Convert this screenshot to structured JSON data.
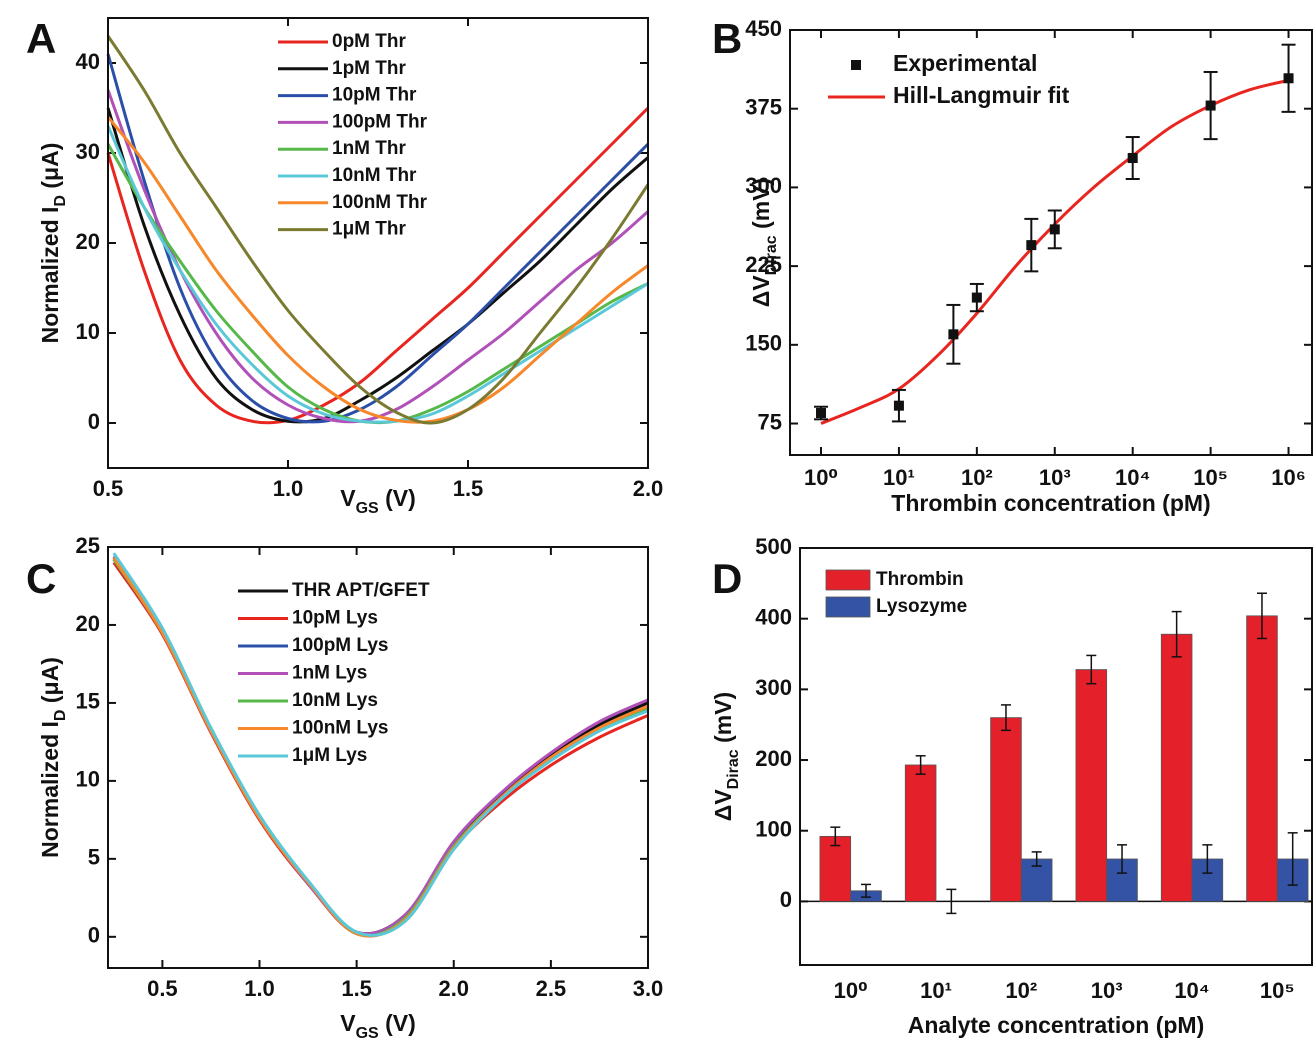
{
  "chart_data": [
    {
      "type": "line",
      "panel": "A",
      "x_label": [
        "V",
        "GS",
        " (V)"
      ],
      "y_label": [
        "Normalized I",
        "D",
        " (μA)"
      ],
      "x": [
        0.5,
        0.6,
        0.7,
        0.8,
        0.9,
        1.0,
        1.1,
        1.2,
        1.3,
        1.4,
        1.5,
        1.6,
        1.7,
        1.8,
        1.9,
        2.0
      ],
      "xlim": [
        0.5,
        2.0
      ],
      "ylim": [
        -5,
        45
      ],
      "xticks": [
        0.5,
        {
          "value": 1.0,
          "label": "1.0"
        },
        1.5,
        {
          "value": 2.0,
          "label": "2.0"
        }
      ],
      "yticks": [
        0,
        10,
        20,
        30,
        40
      ],
      "series": [
        {
          "name": "0pM Thr",
          "color": "#e8251f",
          "values": [
            30,
            17,
            7,
            2,
            0.2,
            0.3,
            2,
            4.5,
            8,
            11.5,
            15,
            19,
            23,
            27,
            31,
            35
          ]
        },
        {
          "name": "1pM Thr",
          "color": "#111111",
          "values": [
            35,
            22,
            12,
            5,
            1.5,
            0.2,
            0.5,
            2.5,
            5,
            8,
            11,
            14.5,
            18,
            22,
            26,
            29.5
          ]
        },
        {
          "name": "10pM Thr",
          "color": "#2b4fa8",
          "values": [
            41,
            27,
            15,
            7,
            2.5,
            0.5,
            0.2,
            1.5,
            4,
            7.5,
            11,
            15,
            19,
            23,
            27,
            31
          ]
        },
        {
          "name": "100pM Thr",
          "color": "#b050b8",
          "values": [
            37,
            26,
            17,
            10,
            5,
            2,
            0.5,
            0.2,
            1.5,
            4,
            7,
            10,
            13.5,
            17,
            20,
            23.5
          ]
        },
        {
          "name": "1nM Thr",
          "color": "#55b848",
          "values": [
            31,
            24,
            18,
            12.5,
            8,
            4,
            1.5,
            0.2,
            0.2,
            1.5,
            3.5,
            6,
            8.5,
            11,
            13.5,
            15.5
          ]
        },
        {
          "name": "10nM Thr",
          "color": "#5bc8d8",
          "values": [
            33,
            24,
            17,
            11,
            6.5,
            3,
            1,
            0.2,
            0.2,
            1,
            3,
            5.5,
            8,
            10.5,
            13,
            15.5
          ]
        },
        {
          "name": "100nM Thr",
          "color": "#f6872a",
          "values": [
            34,
            29,
            23,
            17,
            12,
            7.5,
            4,
            1.5,
            0.3,
            0.2,
            1.5,
            4,
            7.5,
            11,
            14.5,
            17.5
          ]
        },
        {
          "name": "1μM Thr",
          "color": "#7a7a30",
          "values": [
            43,
            37,
            30,
            24,
            18,
            12.5,
            8,
            4,
            1.2,
            0,
            1.5,
            5,
            10,
            15,
            20.5,
            26.5
          ]
        }
      ]
    },
    {
      "type": "scatter",
      "panel": "B",
      "log_x": true,
      "x_label": [
        "Thrombin concentration (pM)"
      ],
      "y_label": [
        "ΔV",
        "Dirac",
        " (mV)"
      ],
      "xlim": [
        0.4,
        2000000
      ],
      "ylim": [
        45,
        450
      ],
      "xticks": [
        {
          "value": 1,
          "label": "10⁰"
        },
        {
          "value": 10,
          "label": "10¹"
        },
        {
          "value": 100,
          "label": "10²"
        },
        {
          "value": 1000,
          "label": "10³"
        },
        {
          "value": 10000,
          "label": "10⁴"
        },
        {
          "value": 100000,
          "label": "10⁵"
        },
        {
          "value": 1000000,
          "label": "10⁶"
        }
      ],
      "yticks": [
        75,
        150,
        225,
        300,
        375,
        450
      ],
      "series": [
        {
          "name": "Experimental",
          "color": "#111111",
          "x": [
            1,
            10,
            50,
            100,
            500,
            1000,
            10000,
            100000,
            1000000
          ],
          "values": [
            85,
            92,
            160,
            195,
            245,
            260,
            328,
            378,
            404
          ],
          "errors": [
            6,
            15,
            28,
            13,
            25,
            18,
            20,
            32,
            32
          ]
        }
      ],
      "fit": {
        "name": "Hill-Langmuir fit",
        "color": "#e8251f",
        "x": [
          1,
          3.16,
          10,
          31.6,
          100,
          316,
          1000,
          3162,
          10000,
          31623,
          100000,
          316228,
          1000000
        ],
        "values": [
          75,
          90,
          108,
          140,
          180,
          225,
          265,
          300,
          330,
          358,
          378,
          393,
          402
        ]
      }
    },
    {
      "type": "line",
      "panel": "C",
      "x_label": [
        "V",
        "GS",
        " (V)"
      ],
      "y_label": [
        "Normalized I",
        "D",
        " (μA)"
      ],
      "x": [
        0.25,
        0.5,
        0.75,
        1.0,
        1.25,
        1.5,
        1.75,
        2.0,
        2.25,
        2.5,
        2.75,
        3.0
      ],
      "xlim": [
        0.22,
        3.0
      ],
      "ylim": [
        -2,
        25
      ],
      "xticks": [
        0.5,
        {
          "value": 1.0,
          "label": "1.0"
        },
        1.5,
        {
          "value": 2.0,
          "label": "2.0"
        },
        2.5,
        {
          "value": 3.0,
          "label": "3.0"
        }
      ],
      "yticks": [
        0,
        5,
        10,
        15,
        20,
        25
      ],
      "series": [
        {
          "name": "THR APT/GFET",
          "color": "#111111",
          "values": [
            24.3,
            19.6,
            13.2,
            7.6,
            3.4,
            0.3,
            1.4,
            6.0,
            9.2,
            11.6,
            13.6,
            15.0
          ]
        },
        {
          "name": "10pM Lys",
          "color": "#e8251f",
          "values": [
            24.0,
            19.4,
            13.1,
            7.5,
            3.4,
            0.2,
            1.3,
            5.7,
            8.7,
            11.0,
            12.8,
            14.2
          ]
        },
        {
          "name": "100pM Lys",
          "color": "#2b4fa8",
          "values": [
            24.2,
            19.5,
            13.2,
            7.6,
            3.5,
            0.3,
            1.2,
            5.8,
            8.9,
            11.4,
            13.3,
            14.7
          ]
        },
        {
          "name": "1nM Lys",
          "color": "#b050b8",
          "values": [
            24.4,
            19.6,
            13.3,
            7.7,
            3.4,
            0.3,
            1.4,
            6.1,
            9.3,
            11.8,
            13.8,
            15.2
          ]
        },
        {
          "name": "10nM Lys",
          "color": "#55b848",
          "values": [
            24.2,
            19.5,
            13.2,
            7.6,
            3.5,
            0.2,
            1.2,
            5.8,
            9.0,
            11.4,
            13.3,
            14.6
          ]
        },
        {
          "name": "100nM Lys",
          "color": "#f6872a",
          "values": [
            24.3,
            19.5,
            13.2,
            7.6,
            3.5,
            0.2,
            1.1,
            5.7,
            9.0,
            11.5,
            13.4,
            14.8
          ]
        },
        {
          "name": "1μM Lys",
          "color": "#5bc8d8",
          "values": [
            24.6,
            19.8,
            13.4,
            7.8,
            3.6,
            0.3,
            1.0,
            5.6,
            8.9,
            11.3,
            13.2,
            14.5
          ]
        }
      ]
    },
    {
      "type": "bar",
      "panel": "D",
      "x_label": [
        "Analyte concentration (pM)"
      ],
      "y_label": [
        "ΔV",
        "Dirac",
        " (mV)"
      ],
      "categories": [
        "10⁰",
        "10¹",
        "10²",
        "10³",
        "10⁴",
        "10⁵"
      ],
      "ylim": [
        -90,
        500
      ],
      "yticks": [
        0,
        100,
        200,
        300,
        400,
        500
      ],
      "series": [
        {
          "name": "Thrombin",
          "color": "#e4202a",
          "values": [
            92,
            193,
            260,
            328,
            378,
            404
          ],
          "errors": [
            13,
            13,
            18,
            20,
            32,
            32
          ]
        },
        {
          "name": "Lysozyme",
          "color": "#3453a4",
          "values": [
            15,
            0,
            60,
            60,
            60,
            60
          ],
          "errors": [
            9,
            17,
            10,
            20,
            20,
            37
          ]
        }
      ]
    }
  ]
}
